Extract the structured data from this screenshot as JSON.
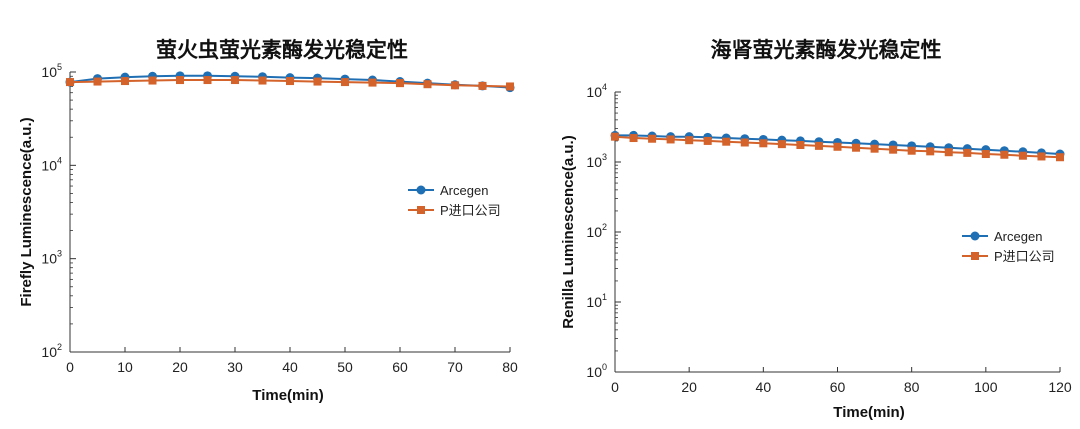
{
  "colors": {
    "arcegen": "#1f6fb4",
    "import": "#d4622b",
    "axis": "#333333"
  },
  "chart_data": [
    {
      "type": "line",
      "title": "萤火虫萤光素酶发光稳定性",
      "xlabel": "Time(min)",
      "ylabel": "Firefly Luminescence(a.u.)",
      "xlim": [
        0,
        80
      ],
      "ylim": [
        100,
        100000
      ],
      "yscale": "log",
      "xticks": [
        "0",
        "10",
        "20",
        "30",
        "40",
        "50",
        "60",
        "70",
        "80"
      ],
      "yticks": [
        {
          "base": "10",
          "exp": "2"
        },
        {
          "base": "10",
          "exp": "3"
        },
        {
          "base": "10",
          "exp": "4"
        },
        {
          "base": "10",
          "exp": "5"
        }
      ],
      "legend_position": "right-middle",
      "x": [
        0,
        5,
        10,
        15,
        20,
        25,
        30,
        35,
        40,
        45,
        50,
        55,
        60,
        65,
        70,
        75,
        80
      ],
      "series": [
        {
          "name": "Arcegen",
          "marker": "circle",
          "values": [
            78000,
            85000,
            88000,
            90000,
            91000,
            91000,
            90000,
            89000,
            87000,
            86000,
            84000,
            82000,
            79000,
            76000,
            73000,
            71000,
            68000
          ]
        },
        {
          "name": "P进口公司",
          "marker": "square",
          "values": [
            78000,
            79000,
            80000,
            81000,
            82000,
            82000,
            82000,
            81000,
            80000,
            79000,
            78000,
            77000,
            76000,
            74000,
            72000,
            71000,
            70000
          ]
        }
      ]
    },
    {
      "type": "line",
      "title": "海肾萤光素酶发光稳定性",
      "xlabel": "Time(min)",
      "ylabel": "Renilla Luminescence(a.u.)",
      "xlim": [
        0,
        120
      ],
      "ylim": [
        1,
        10000
      ],
      "yscale": "log",
      "xticks": [
        "0",
        "20",
        "40",
        "60",
        "80",
        "100",
        "120"
      ],
      "yticks": [
        {
          "base": "10",
          "exp": "0"
        },
        {
          "base": "10",
          "exp": "1"
        },
        {
          "base": "10",
          "exp": "2"
        },
        {
          "base": "10",
          "exp": "3"
        },
        {
          "base": "10",
          "exp": "4"
        }
      ],
      "legend_position": "right-middle",
      "x": [
        0,
        5,
        10,
        15,
        20,
        25,
        30,
        35,
        40,
        45,
        50,
        55,
        60,
        65,
        70,
        75,
        80,
        85,
        90,
        95,
        100,
        105,
        110,
        115,
        120
      ],
      "series": [
        {
          "name": "Arcegen",
          "marker": "circle",
          "values": [
            2400,
            2400,
            2350,
            2300,
            2300,
            2250,
            2200,
            2150,
            2100,
            2050,
            2000,
            1950,
            1900,
            1850,
            1800,
            1750,
            1700,
            1650,
            1600,
            1550,
            1500,
            1450,
            1400,
            1350,
            1300
          ]
        },
        {
          "name": "P进口公司",
          "marker": "square",
          "values": [
            2300,
            2200,
            2150,
            2100,
            2050,
            2000,
            1950,
            1900,
            1850,
            1800,
            1750,
            1700,
            1650,
            1600,
            1550,
            1500,
            1450,
            1420,
            1380,
            1350,
            1300,
            1270,
            1230,
            1200,
            1170
          ]
        }
      ]
    }
  ]
}
